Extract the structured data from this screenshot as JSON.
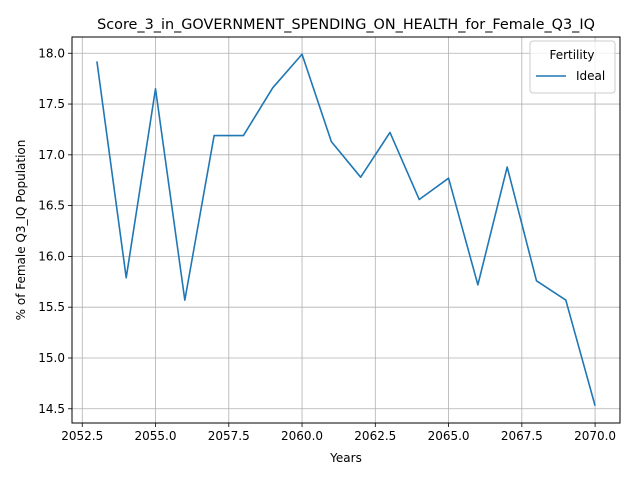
{
  "chart_data": {
    "type": "line",
    "title": "Score_3_in_GOVERNMENT_SPENDING_ON_HEALTH_for_Female_Q3_IQ",
    "xlabel": "Years",
    "ylabel": "% of Female Q3_IQ Population",
    "xlim": [
      2052.15,
      2070.85
    ],
    "ylim": [
      14.36,
      18.16
    ],
    "xticks": [
      2052.5,
      2055.0,
      2057.5,
      2060.0,
      2062.5,
      2065.0,
      2067.5,
      2070.0
    ],
    "xtick_labels": [
      "2052.5",
      "2055.0",
      "2057.5",
      "2060.0",
      "2062.5",
      "2065.0",
      "2067.5",
      "2070.0"
    ],
    "yticks": [
      14.5,
      15.0,
      15.5,
      16.0,
      16.5,
      17.0,
      17.5,
      18.0
    ],
    "ytick_labels": [
      "14.5",
      "15.0",
      "15.5",
      "16.0",
      "16.5",
      "17.0",
      "17.5",
      "18.0"
    ],
    "grid": true,
    "legend": {
      "title": "Fertility",
      "placement": "top-right"
    },
    "series": [
      {
        "name": "Ideal",
        "color": "#1f77b4",
        "x": [
          2053,
          2054,
          2055,
          2056,
          2057,
          2058,
          2059,
          2060,
          2061,
          2062,
          2063,
          2064,
          2065,
          2066,
          2067,
          2068,
          2069,
          2070
        ],
        "y": [
          17.92,
          15.79,
          17.65,
          15.57,
          17.19,
          17.19,
          17.66,
          17.99,
          17.13,
          16.78,
          17.22,
          16.56,
          16.77,
          15.72,
          16.88,
          15.76,
          15.57,
          14.53
        ]
      }
    ]
  }
}
